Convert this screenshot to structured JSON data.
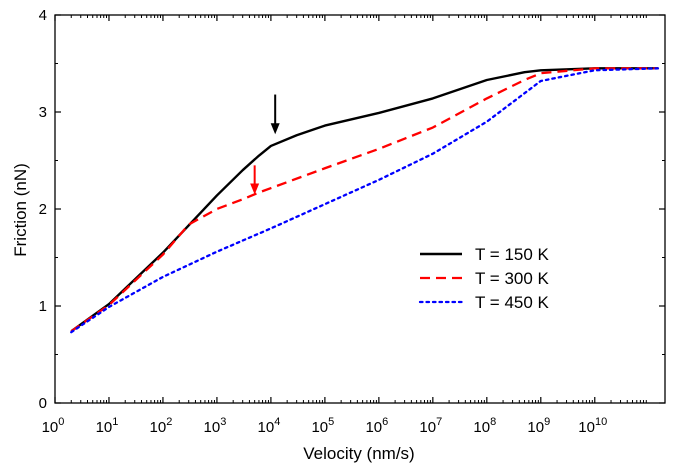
{
  "chart_data": {
    "type": "line",
    "title": "",
    "xlabel": "Velocity (nm/s)",
    "ylabel": "Friction (nN)",
    "x_scale": "log",
    "xlim": [
      1,
      200000000000
    ],
    "ylim": [
      0,
      4
    ],
    "x_ticks": [
      {
        "value": 1,
        "base": "10",
        "exp": "0"
      },
      {
        "value": 10,
        "base": "10",
        "exp": "1"
      },
      {
        "value": 100,
        "base": "10",
        "exp": "2"
      },
      {
        "value": 1000,
        "base": "10",
        "exp": "3"
      },
      {
        "value": 10000,
        "base": "10",
        "exp": "4"
      },
      {
        "value": 100000,
        "base": "10",
        "exp": "5"
      },
      {
        "value": 1000000,
        "base": "10",
        "exp": "6"
      },
      {
        "value": 10000000,
        "base": "10",
        "exp": "7"
      },
      {
        "value": 100000000,
        "base": "10",
        "exp": "8"
      },
      {
        "value": 1000000000,
        "base": "10",
        "exp": "9"
      },
      {
        "value": 10000000000,
        "base": "10",
        "exp": "10"
      }
    ],
    "y_ticks": [
      {
        "value": 0,
        "label": "0"
      },
      {
        "value": 1,
        "label": "1"
      },
      {
        "value": 2,
        "label": "2"
      },
      {
        "value": 3,
        "label": "3"
      },
      {
        "value": 4,
        "label": "4"
      }
    ],
    "grid": false,
    "legend_position": "lower-right",
    "series": [
      {
        "name": "T = 150 K",
        "color": "#000000",
        "style": "solid",
        "x": [
          2,
          10,
          100,
          1000,
          3000,
          6000,
          10000,
          30000,
          100000,
          1000000,
          10000000,
          100000000,
          500000000,
          1000000000,
          10000000000,
          150000000000
        ],
        "y": [
          0.74,
          1.02,
          1.55,
          2.14,
          2.4,
          2.55,
          2.65,
          2.76,
          2.86,
          2.99,
          3.14,
          3.33,
          3.41,
          3.43,
          3.45,
          3.45
        ]
      },
      {
        "name": "T = 300 K",
        "color": "#ff0000",
        "style": "dashed",
        "x": [
          2,
          10,
          100,
          300,
          1000,
          3000,
          6000,
          100000,
          1000000,
          10000000,
          100000000,
          500000000,
          1000000000,
          10000000000,
          150000000000
        ],
        "y": [
          0.74,
          1.01,
          1.53,
          1.84,
          2.0,
          2.1,
          2.17,
          2.42,
          2.62,
          2.84,
          3.14,
          3.33,
          3.4,
          3.45,
          3.45
        ]
      },
      {
        "name": "T = 450 K",
        "color": "#0000ff",
        "style": "dotted",
        "x": [
          2,
          10,
          100,
          1000,
          10000,
          100000,
          1000000,
          10000000,
          100000000,
          1000000000,
          10000000000,
          150000000000
        ],
        "y": [
          0.73,
          0.99,
          1.3,
          1.56,
          1.8,
          2.05,
          2.3,
          2.57,
          2.9,
          3.32,
          3.43,
          3.45
        ]
      }
    ],
    "annotations": [
      {
        "name": "black-arrow",
        "color": "#000000",
        "x": 12000,
        "y_from": 3.18,
        "y_to": 2.77
      },
      {
        "name": "red-arrow",
        "color": "#ff0000",
        "x": 5000,
        "y_from": 2.45,
        "y_to": 2.15
      }
    ]
  }
}
